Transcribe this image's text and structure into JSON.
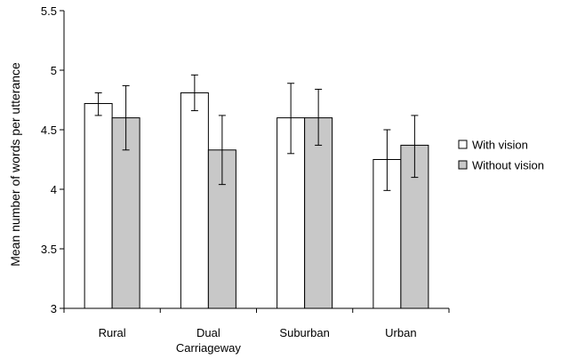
{
  "chart_data": {
    "type": "bar",
    "xlabel": "",
    "ylabel": "Mean number of words per utterance",
    "ylim": [
      3,
      5.5
    ],
    "yticks": [
      "3",
      "3.5",
      "4",
      "4.5",
      "5",
      "5.5"
    ],
    "categories": [
      [
        "Rural"
      ],
      [
        "Dual",
        "Carriageway"
      ],
      [
        "Suburban"
      ],
      [
        "Urban"
      ]
    ],
    "series": [
      {
        "name": "With vision",
        "color": "#ffffff",
        "values": [
          4.72,
          4.81,
          4.6,
          4.25
        ],
        "err_low": [
          4.62,
          4.66,
          4.3,
          3.99
        ],
        "err_high": [
          4.81,
          4.96,
          4.89,
          4.5
        ]
      },
      {
        "name": "Without vision",
        "color": "#c8c8c8",
        "values": [
          4.6,
          4.33,
          4.6,
          4.37
        ],
        "err_low": [
          4.33,
          4.04,
          4.37,
          4.1
        ],
        "err_high": [
          4.87,
          4.62,
          4.84,
          4.62
        ]
      }
    ],
    "grid": false,
    "legend_position": "right"
  }
}
